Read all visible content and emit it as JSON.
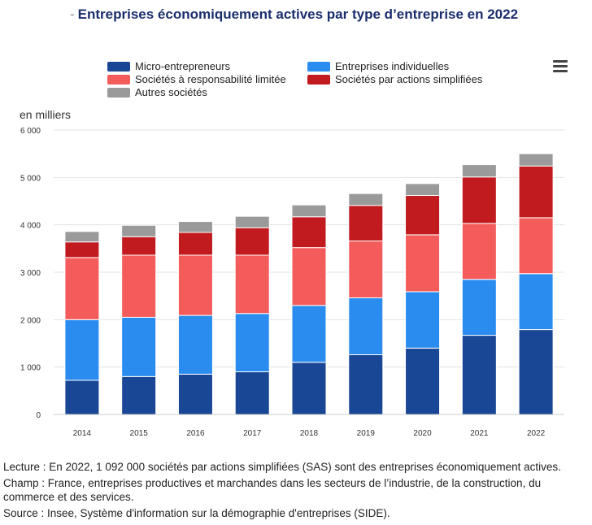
{
  "title_prefix": "-",
  "title": "Entreprises économiquement actives par type d’entreprise en 2022",
  "y_unit_label": "en milliers",
  "menu_icon": "hamburger-menu-icon",
  "legend": [
    {
      "label": "Micro-entrepreneurs",
      "color": "#1a4795"
    },
    {
      "label": "Entreprises individuelles",
      "color": "#2b8cf0"
    },
    {
      "label": "Sociétés à responsabilité limitée",
      "color": "#f45b5b"
    },
    {
      "label": "Sociétés par actions simplifiées",
      "color": "#c11b1f"
    },
    {
      "label": "Autres sociétés",
      "color": "#9a9a9a"
    }
  ],
  "chart_data": {
    "type": "bar",
    "stacked": true,
    "title": "Entreprises économiquement actives par type d’entreprise en 2022",
    "xlabel": "",
    "ylabel": "en milliers",
    "ylim": [
      0,
      6000
    ],
    "yticks": [
      0,
      1000,
      2000,
      3000,
      4000,
      5000,
      6000
    ],
    "ytick_labels": [
      "0",
      "1 000",
      "2 000",
      "3 000",
      "4 000",
      "5 000",
      "6 000"
    ],
    "categories": [
      "2014",
      "2015",
      "2016",
      "2017",
      "2018",
      "2019",
      "2020",
      "2021",
      "2022"
    ],
    "series": [
      {
        "name": "Micro-entrepreneurs",
        "color": "#1a4795",
        "values": [
          720,
          800,
          850,
          900,
          1100,
          1260,
          1400,
          1670,
          1790
        ]
      },
      {
        "name": "Entreprises individuelles",
        "color": "#2b8cf0",
        "values": [
          1280,
          1250,
          1240,
          1230,
          1200,
          1200,
          1190,
          1180,
          1180
        ]
      },
      {
        "name": "Sociétés à responsabilité limitée",
        "color": "#f45b5b",
        "values": [
          1310,
          1310,
          1270,
          1230,
          1220,
          1200,
          1200,
          1180,
          1180
        ]
      },
      {
        "name": "Sociétés par actions simplifiées",
        "color": "#c11b1f",
        "values": [
          330,
          390,
          480,
          580,
          650,
          750,
          830,
          980,
          1092
        ]
      },
      {
        "name": "Autres sociétés",
        "color": "#9a9a9a",
        "values": [
          220,
          240,
          230,
          240,
          250,
          250,
          250,
          260,
          260
        ]
      }
    ],
    "legend_position": "top"
  },
  "notes": {
    "lecture": "Lecture : En 2022, 1 092 000 sociétés par actions simplifiées (SAS) sont des entreprises économiquement actives.",
    "champ": "Champ : France, entreprises productives et marchandes dans les secteurs de l’industrie, de la construction, du commerce et des services.",
    "source": "Source : Insee, Système d'information sur la démographie d'entreprises (SIDE)."
  }
}
